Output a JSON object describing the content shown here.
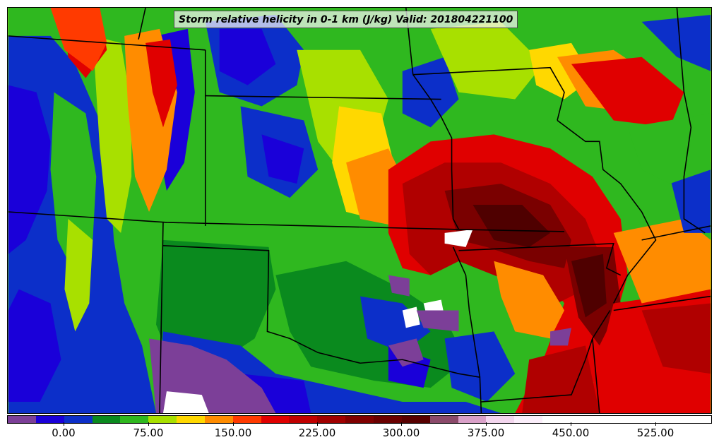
{
  "map": {
    "title": "Storm relative helicity in 0-1 km (J/kg) Valid: 201804221100",
    "field": "storm-relative-helicity-0-1km",
    "palette": {
      "purple": "#7c3f98",
      "deep_blue": "#1a00d9",
      "blue": "#0c2fc9",
      "dark_green": "#0a8a1e",
      "green": "#2fb81f",
      "yellow_green": "#a8e000",
      "yellow": "#ffd800",
      "orange": "#ff8c00",
      "red_orange": "#ff3a00",
      "red": "#e00000",
      "dark_red": "#b00000",
      "maroon": "#7a0000",
      "deep_maroon": "#4f0000",
      "mauve": "#8b4a6a",
      "pink": "#d9a0c8",
      "light_pink": "#f3d6ee",
      "white": "#ffffff",
      "boundary": "#000000"
    }
  },
  "colorbar": {
    "tick_labels": [
      "0.00",
      "75.00",
      "150.00",
      "225.00",
      "300.00",
      "375.00",
      "450.00",
      "525.00"
    ],
    "colors": [
      "#7c3f98",
      "#1a00d9",
      "#0c2fc9",
      "#0a8a1e",
      "#2fb81f",
      "#a8e000",
      "#ffd800",
      "#ff8c00",
      "#ff3a00",
      "#e00000",
      "#c00000",
      "#a00000",
      "#800000",
      "#6a0000",
      "#580000",
      "#8b4a6a",
      "#d9a0c8",
      "#f3d6ee",
      "#fbeefa",
      "#ffffff",
      "#ffffff",
      "#ffffff",
      "#ffffff",
      "#ffffff",
      "#ffffff"
    ]
  }
}
